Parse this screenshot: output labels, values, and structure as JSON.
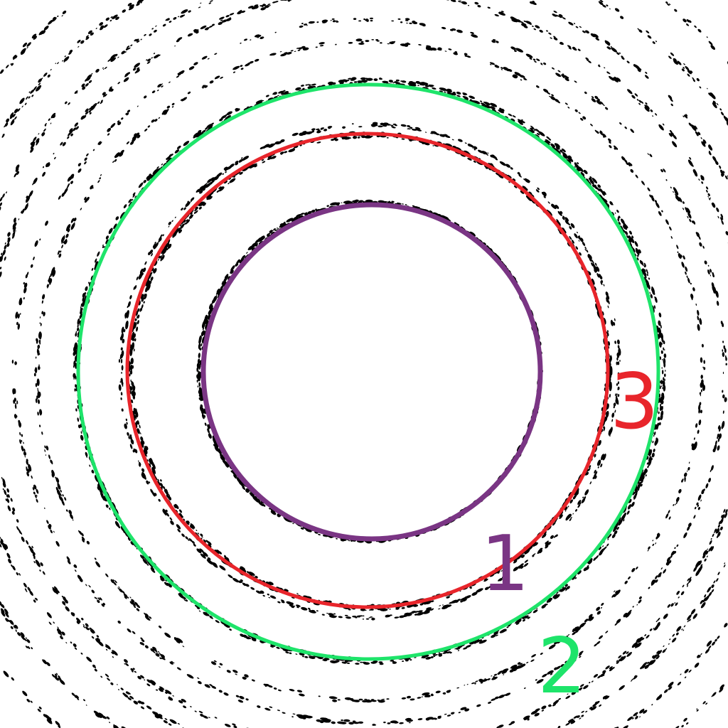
{
  "rings": [
    {
      "label": "1",
      "color": "#7a3584"
    },
    {
      "label": "2",
      "color": "#1ee46a"
    },
    {
      "label": "3",
      "color": "#e8252b"
    }
  ],
  "background_rings_color": "#000000"
}
